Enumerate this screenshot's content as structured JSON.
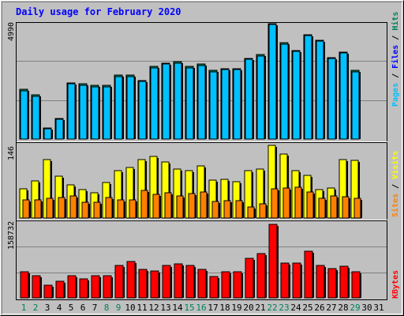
{
  "title": "Daily usage for February 2020",
  "colors": {
    "background": "#c0c0c0",
    "title": "#0000ff",
    "hits": "#00805c",
    "files": "#0000ff",
    "pages": "#00c0ff",
    "visits": "#ffff00",
    "sites": "#ff8000",
    "kbytes": "#ff0000"
  },
  "chart_data": [
    {
      "type": "bar",
      "panel": "hits-files-pages",
      "max_label": "4990",
      "y_axis_label": {
        "pages": "Pages",
        "files": "Files",
        "hits": "Hits",
        "sep": " / "
      },
      "categories": [
        "1",
        "2",
        "3",
        "4",
        "5",
        "6",
        "7",
        "8",
        "9",
        "10",
        "11",
        "12",
        "13",
        "14",
        "15",
        "16",
        "17",
        "18",
        "19",
        "20",
        "21",
        "22",
        "23",
        "24",
        "25",
        "26",
        "27",
        "28",
        "29",
        "30",
        "31"
      ],
      "series": [
        {
          "name": "Hits",
          "values": [
            2150,
            1910,
            480,
            900,
            2420,
            2380,
            2310,
            2310,
            2760,
            2760,
            2530,
            3130,
            3290,
            3340,
            3130,
            3230,
            2960,
            3050,
            3050,
            3500,
            3640,
            4990,
            4160,
            3820,
            4520,
            4280,
            3530,
            3770,
            2960,
            null,
            null
          ]
        },
        {
          "name": "Files",
          "values": [
            2150,
            1910,
            480,
            900,
            2420,
            2380,
            2310,
            2310,
            2760,
            2760,
            2530,
            3130,
            3290,
            3340,
            3130,
            3230,
            2960,
            3050,
            3050,
            3500,
            3640,
            4990,
            4160,
            3820,
            4520,
            4280,
            3530,
            3770,
            2960,
            null,
            null
          ]
        },
        {
          "name": "Pages",
          "values": [
            2100,
            1860,
            440,
            860,
            2380,
            2330,
            2260,
            2270,
            2710,
            2700,
            2480,
            3080,
            3250,
            3290,
            3080,
            3180,
            2910,
            3000,
            3000,
            3460,
            3580,
            4950,
            4110,
            3780,
            4480,
            4240,
            3490,
            3730,
            2910,
            null,
            null
          ]
        }
      ],
      "ylim": [
        0,
        4990
      ]
    },
    {
      "type": "bar",
      "panel": "visits-sites",
      "max_label": "146",
      "y_axis_label": {
        "sites": "Sites",
        "visits": "Visits",
        "sep": " / "
      },
      "categories": [
        "1",
        "2",
        "3",
        "4",
        "5",
        "6",
        "7",
        "8",
        "9",
        "10",
        "11",
        "12",
        "13",
        "14",
        "15",
        "16",
        "17",
        "18",
        "19",
        "20",
        "21",
        "22",
        "23",
        "24",
        "25",
        "26",
        "27",
        "28",
        "29",
        "30",
        "31"
      ],
      "series": [
        {
          "name": "Visits",
          "values": [
            58,
            74,
            117,
            84,
            66,
            57,
            51,
            72,
            96,
            102,
            117,
            124,
            113,
            98,
            96,
            105,
            76,
            77,
            73,
            96,
            98,
            146,
            128,
            95,
            85,
            57,
            61,
            117,
            116,
            null,
            null
          ]
        },
        {
          "name": "Sites",
          "values": [
            36,
            36,
            40,
            42,
            45,
            32,
            32,
            42,
            37,
            36,
            56,
            47,
            51,
            45,
            49,
            53,
            34,
            35,
            35,
            23,
            28,
            59,
            60,
            62,
            52,
            40,
            45,
            43,
            40,
            null,
            null
          ]
        }
      ],
      "ylim": [
        0,
        146
      ]
    },
    {
      "type": "bar",
      "panel": "kbytes",
      "max_label": "158732",
      "y_axis_label": "KBytes",
      "categories": [
        "1",
        "2",
        "3",
        "4",
        "5",
        "6",
        "7",
        "8",
        "9",
        "10",
        "11",
        "12",
        "13",
        "14",
        "15",
        "16",
        "17",
        "18",
        "19",
        "20",
        "21",
        "22",
        "23",
        "24",
        "25",
        "26",
        "27",
        "28",
        "29",
        "30",
        "31"
      ],
      "series": [
        {
          "name": "KBytes",
          "values": [
            56000,
            48000,
            28000,
            35000,
            48000,
            41000,
            48000,
            48000,
            70000,
            78000,
            61000,
            58000,
            70000,
            74000,
            70000,
            62000,
            46000,
            57000,
            57000,
            85000,
            95000,
            158732,
            75000,
            75000,
            100000,
            70000,
            64000,
            68000,
            56000,
            null,
            null
          ]
        }
      ],
      "ylim": [
        0,
        158732
      ]
    }
  ],
  "day_labels": [
    {
      "text": "1",
      "weekend": true
    },
    {
      "text": "2",
      "weekend": true
    },
    {
      "text": "3",
      "weekend": false
    },
    {
      "text": "4",
      "weekend": false
    },
    {
      "text": "5",
      "weekend": false
    },
    {
      "text": "6",
      "weekend": false
    },
    {
      "text": "7",
      "weekend": false
    },
    {
      "text": "8",
      "weekend": true
    },
    {
      "text": "9",
      "weekend": true
    },
    {
      "text": "10",
      "weekend": false
    },
    {
      "text": "11",
      "weekend": false
    },
    {
      "text": "12",
      "weekend": false
    },
    {
      "text": "13",
      "weekend": false
    },
    {
      "text": "14",
      "weekend": false
    },
    {
      "text": "15",
      "weekend": true
    },
    {
      "text": "16",
      "weekend": true
    },
    {
      "text": "17",
      "weekend": false
    },
    {
      "text": "18",
      "weekend": false
    },
    {
      "text": "19",
      "weekend": false
    },
    {
      "text": "20",
      "weekend": false
    },
    {
      "text": "21",
      "weekend": false
    },
    {
      "text": "22",
      "weekend": true
    },
    {
      "text": "23",
      "weekend": true
    },
    {
      "text": "24",
      "weekend": false
    },
    {
      "text": "25",
      "weekend": false
    },
    {
      "text": "26",
      "weekend": false
    },
    {
      "text": "27",
      "weekend": false
    },
    {
      "text": "28",
      "weekend": false
    },
    {
      "text": "29",
      "weekend": true
    },
    {
      "text": "30",
      "weekend": false
    },
    {
      "text": "31",
      "weekend": false
    }
  ]
}
